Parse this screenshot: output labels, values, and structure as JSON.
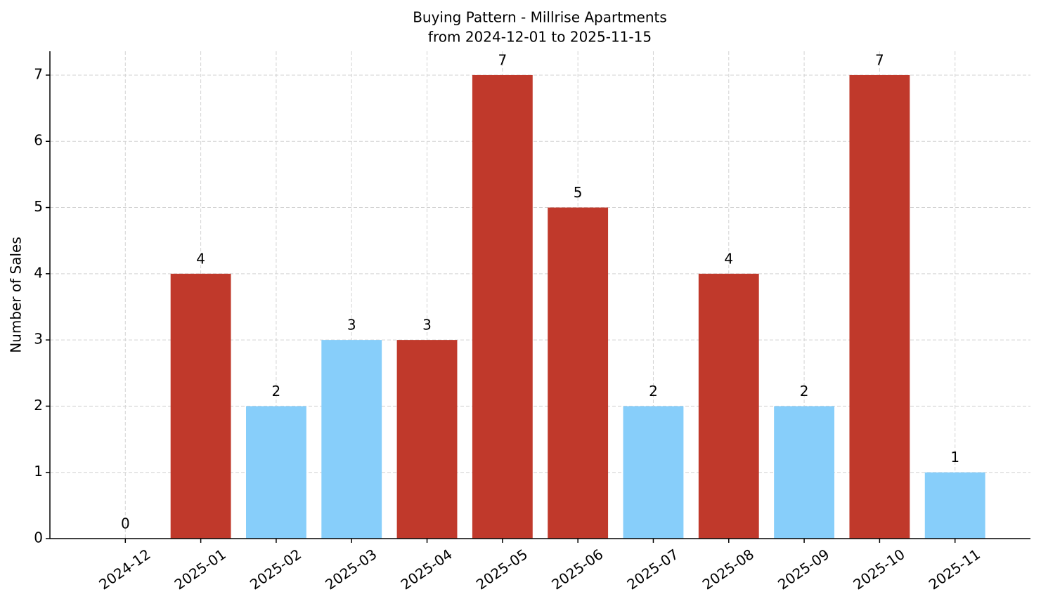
{
  "chart_data": {
    "type": "bar",
    "title": "Buying Pattern - Millrise Apartments",
    "subtitle": "from 2024-12-01 to 2025-11-15",
    "y_label": "Number of Sales",
    "categories": [
      "2024-12",
      "2025-01",
      "2025-02",
      "2025-03",
      "2025-04",
      "2025-05",
      "2025-06",
      "2025-07",
      "2025-08",
      "2025-09",
      "2025-10",
      "2025-11"
    ],
    "values": [
      0,
      4,
      2,
      3,
      3,
      7,
      5,
      2,
      4,
      2,
      7,
      1
    ],
    "colors": [
      "#87cefa",
      "#c0392b",
      "#87cefa",
      "#87cefa",
      "#c0392b",
      "#c0392b",
      "#c0392b",
      "#87cefa",
      "#c0392b",
      "#87cefa",
      "#c0392b",
      "#87cefa"
    ],
    "ylim": [
      0,
      7.36
    ],
    "yticks": [
      0,
      1,
      2,
      3,
      4,
      5,
      6,
      7
    ],
    "grid": true
  }
}
